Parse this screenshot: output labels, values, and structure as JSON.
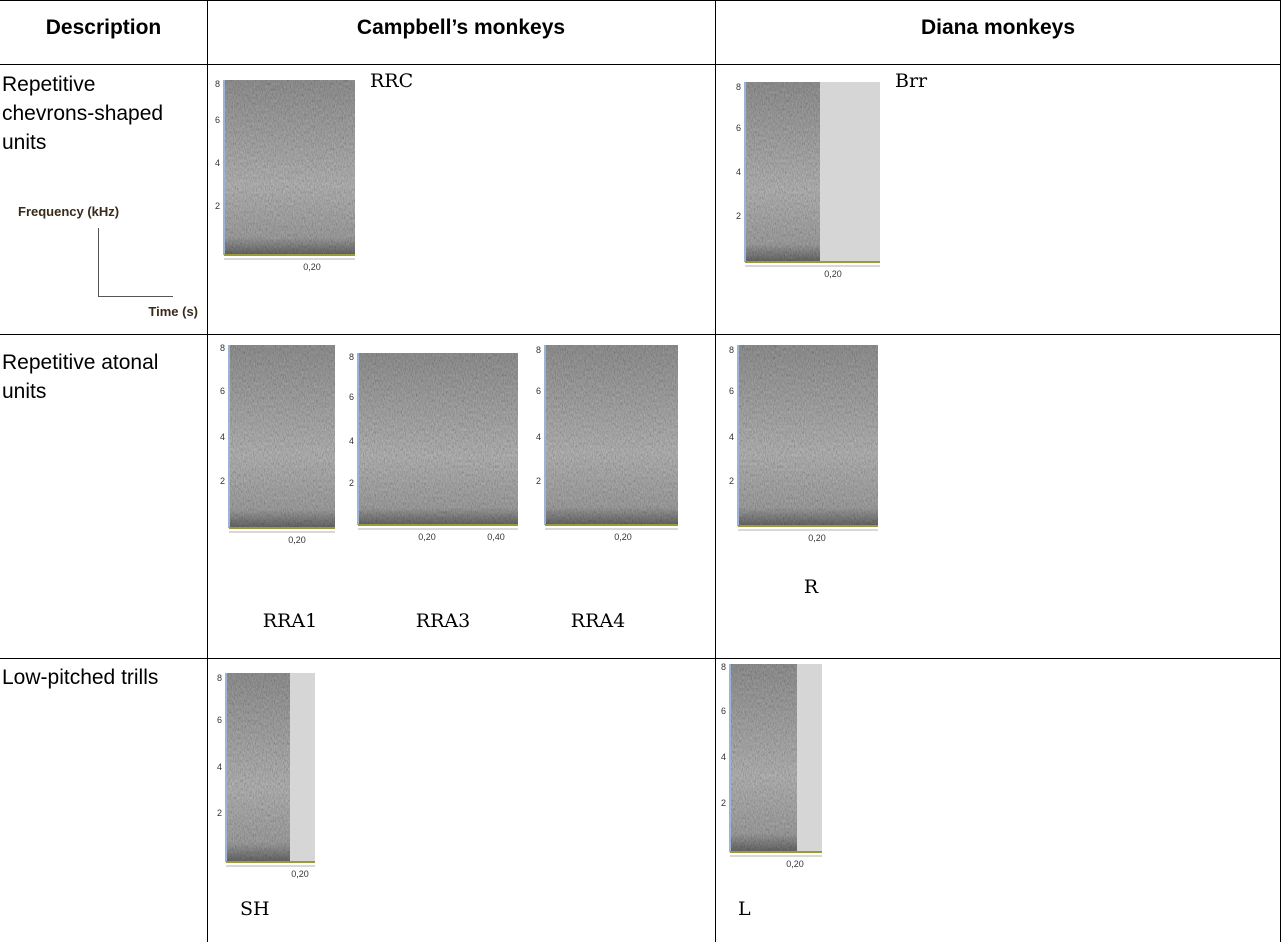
{
  "table": {
    "columns": [
      "Description",
      "Campbell’s monkeys",
      "Diana monkeys"
    ],
    "rows": [
      {
        "description": "Repetitive chevrons-shaped units",
        "axis_key": {
          "y_label": "Frequency (kHz)",
          "x_label": "Time (s)"
        },
        "campbell": [
          {
            "label": "RRC",
            "yticks": [
              "8",
              "6",
              "4",
              "2"
            ],
            "xticks": [
              "0,20"
            ]
          }
        ],
        "diana": [
          {
            "label": "Brr",
            "yticks": [
              "8",
              "6",
              "4",
              "2"
            ],
            "xticks": [
              "0,20"
            ]
          }
        ]
      },
      {
        "description": "Repetitive atonal units",
        "campbell": [
          {
            "label": "RRA1",
            "yticks": [
              "8",
              "6",
              "4",
              "2"
            ],
            "xticks": [
              "0,20"
            ]
          },
          {
            "label": "RRA3",
            "yticks": [
              "8",
              "6",
              "4",
              "2"
            ],
            "xticks": [
              "0,20",
              "0,40"
            ]
          },
          {
            "label": "RRA4",
            "yticks": [
              "8",
              "6",
              "4",
              "2"
            ],
            "xticks": [
              "0,20"
            ]
          }
        ],
        "diana": [
          {
            "label": "R",
            "yticks": [
              "8",
              "6",
              "4",
              "2"
            ],
            "xticks": [
              "0,20"
            ]
          }
        ]
      },
      {
        "description": "Low-pitched trills",
        "campbell": [
          {
            "label": "SH",
            "yticks": [
              "8",
              "6",
              "4",
              "2"
            ],
            "xticks": [
              "0,20"
            ]
          }
        ],
        "diana": [
          {
            "label": "L",
            "yticks": [
              "8",
              "6",
              "4",
              "2"
            ],
            "xticks": [
              "0,20"
            ]
          }
        ]
      }
    ]
  }
}
